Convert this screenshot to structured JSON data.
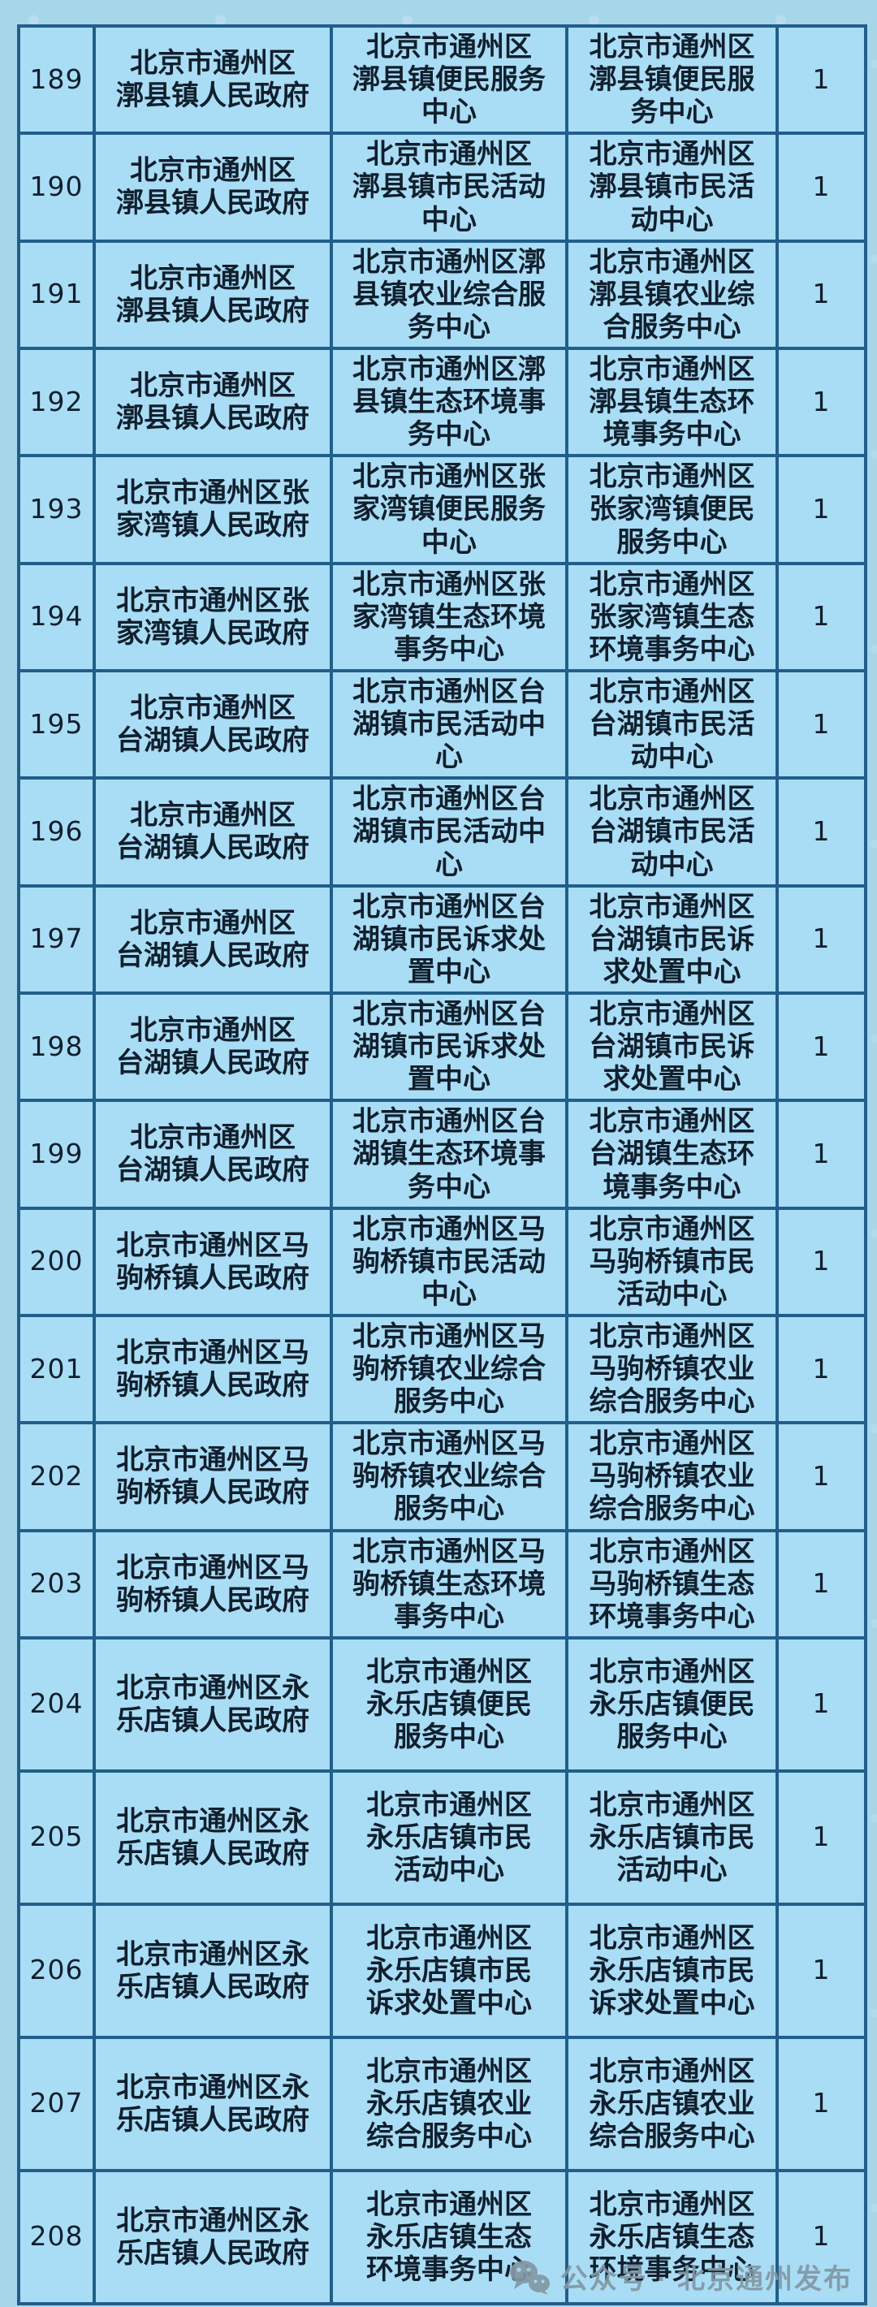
{
  "theme": {
    "page_bg": "#a7d6ea",
    "cell_bg": "#a9ddf5",
    "border_color": "#215f8a",
    "text_color": "#111f2d",
    "watermark_color": "#8397a4"
  },
  "table": {
    "rows": [
      {
        "no": "189",
        "gov": "北京市通州区\n漷县镇人民政府",
        "center_a": "北京市通州区\n漷县镇便民服务\n中心",
        "center_b": "北京市通州区\n漷县镇便民服\n务中心",
        "count": "1"
      },
      {
        "no": "190",
        "gov": "北京市通州区\n漷县镇人民政府",
        "center_a": "北京市通州区\n漷县镇市民活动\n中心",
        "center_b": "北京市通州区\n漷县镇市民活\n动中心",
        "count": "1"
      },
      {
        "no": "191",
        "gov": "北京市通州区\n漷县镇人民政府",
        "center_a": "北京市通州区漷\n县镇农业综合服\n务中心",
        "center_b": "北京市通州区\n漷县镇农业综\n合服务中心",
        "count": "1"
      },
      {
        "no": "192",
        "gov": "北京市通州区\n漷县镇人民政府",
        "center_a": "北京市通州区漷\n县镇生态环境事\n务中心",
        "center_b": "北京市通州区\n漷县镇生态环\n境事务中心",
        "count": "1"
      },
      {
        "no": "193",
        "gov": "北京市通州区张\n家湾镇人民政府",
        "center_a": "北京市通州区张\n家湾镇便民服务\n中心",
        "center_b": "北京市通州区\n张家湾镇便民\n服务中心",
        "count": "1"
      },
      {
        "no": "194",
        "gov": "北京市通州区张\n家湾镇人民政府",
        "center_a": "北京市通州区张\n家湾镇生态环境\n事务中心",
        "center_b": "北京市通州区\n张家湾镇生态\n环境事务中心",
        "count": "1"
      },
      {
        "no": "195",
        "gov": "北京市通州区\n台湖镇人民政府",
        "center_a": "北京市通州区台\n湖镇市民活动中\n心",
        "center_b": "北京市通州区\n台湖镇市民活\n动中心",
        "count": "1"
      },
      {
        "no": "196",
        "gov": "北京市通州区\n台湖镇人民政府",
        "center_a": "北京市通州区台\n湖镇市民活动中\n心",
        "center_b": "北京市通州区\n台湖镇市民活\n动中心",
        "count": "1"
      },
      {
        "no": "197",
        "gov": "北京市通州区\n台湖镇人民政府",
        "center_a": "北京市通州区台\n湖镇市民诉求处\n置中心",
        "center_b": "北京市通州区\n台湖镇市民诉\n求处置中心",
        "count": "1"
      },
      {
        "no": "198",
        "gov": "北京市通州区\n台湖镇人民政府",
        "center_a": "北京市通州区台\n湖镇市民诉求处\n置中心",
        "center_b": "北京市通州区\n台湖镇市民诉\n求处置中心",
        "count": "1"
      },
      {
        "no": "199",
        "gov": "北京市通州区\n台湖镇人民政府",
        "center_a": "北京市通州区台\n湖镇生态环境事\n务中心",
        "center_b": "北京市通州区\n台湖镇生态环\n境事务中心",
        "count": "1"
      },
      {
        "no": "200",
        "gov": "北京市通州区马\n驹桥镇人民政府",
        "center_a": "北京市通州区马\n驹桥镇市民活动\n中心",
        "center_b": "北京市通州区\n马驹桥镇市民\n活动中心",
        "count": "1"
      },
      {
        "no": "201",
        "gov": "北京市通州区马\n驹桥镇人民政府",
        "center_a": "北京市通州区马\n驹桥镇农业综合\n服务中心",
        "center_b": "北京市通州区\n马驹桥镇农业\n综合服务中心",
        "count": "1"
      },
      {
        "no": "202",
        "gov": "北京市通州区马\n驹桥镇人民政府",
        "center_a": "北京市通州区马\n驹桥镇农业综合\n服务中心",
        "center_b": "北京市通州区\n马驹桥镇农业\n综合服务中心",
        "count": "1"
      },
      {
        "no": "203",
        "gov": "北京市通州区马\n驹桥镇人民政府",
        "center_a": "北京市通州区马\n驹桥镇生态环境\n事务中心",
        "center_b": "北京市通州区\n马驹桥镇生态\n环境事务中心",
        "count": "1"
      },
      {
        "no": "204",
        "gov": "北京市通州区永\n乐店镇人民政府",
        "center_a": "北京市通州区\n永乐店镇便民\n服务中心",
        "center_b": "北京市通州区\n永乐店镇便民\n服务中心",
        "count": "1"
      },
      {
        "no": "205",
        "gov": "北京市通州区永\n乐店镇人民政府",
        "center_a": "北京市通州区\n永乐店镇市民\n活动中心",
        "center_b": "北京市通州区\n永乐店镇市民\n活动中心",
        "count": "1"
      },
      {
        "no": "206",
        "gov": "北京市通州区永\n乐店镇人民政府",
        "center_a": "北京市通州区\n永乐店镇市民\n诉求处置中心",
        "center_b": "北京市通州区\n永乐店镇市民\n诉求处置中心",
        "count": "1"
      },
      {
        "no": "207",
        "gov": "北京市通州区永\n乐店镇人民政府",
        "center_a": "北京市通州区\n永乐店镇农业\n综合服务中心",
        "center_b": "北京市通州区\n永乐店镇农业\n综合服务中心",
        "count": "1"
      },
      {
        "no": "208",
        "gov": "北京市通州区永\n乐店镇人民政府",
        "center_a": "北京市通州区\n永乐店镇生态\n环境事务中心",
        "center_b": "北京市通州区\n永乐店镇生态\n环境事务中心",
        "count": "1"
      }
    ]
  },
  "watermark": {
    "icon": "wechat-icon",
    "text": "公众号 · 北京通州发布"
  }
}
